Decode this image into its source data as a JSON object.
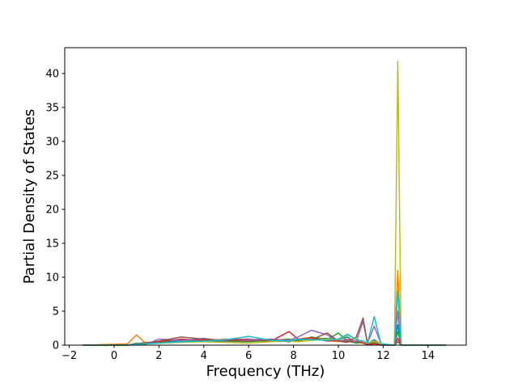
{
  "chart_data": {
    "type": "line",
    "xlabel": "Frequency (THz)",
    "ylabel": "Partial Density of States",
    "x": [
      -1.4,
      0.6,
      1.0,
      1.4,
      2,
      3,
      4,
      5,
      6,
      7,
      7.8,
      8.2,
      8.8,
      9.5,
      10,
      10.4,
      10.8,
      11.1,
      11.3,
      11.6,
      11.9,
      12.5,
      12.65,
      12.8,
      13.2,
      14,
      14.8
    ],
    "series": [
      {
        "color": "#1f77b4",
        "values": [
          0,
          0,
          0.2,
          0.4,
          0.5,
          0.6,
          0.7,
          0.5,
          0.6,
          0.8,
          0.5,
          0.7,
          0.9,
          1.0,
          0.8,
          1.2,
          0.4,
          0.5,
          0.2,
          0.8,
          0.1,
          0,
          3.0,
          0,
          0,
          0,
          0
        ]
      },
      {
        "color": "#ff7f0e",
        "values": [
          0,
          0.2,
          1.5,
          0.3,
          0.6,
          0.8,
          0.6,
          0.9,
          0.7,
          0.5,
          0.8,
          0.6,
          1.0,
          0.7,
          0.5,
          0.9,
          0.6,
          0.3,
          0.2,
          0.4,
          0.1,
          0,
          11.0,
          0,
          0,
          0,
          0
        ]
      },
      {
        "color": "#2ca02c",
        "values": [
          0,
          0,
          0.3,
          0.2,
          0.4,
          0.5,
          0.8,
          0.6,
          0.5,
          0.7,
          0.9,
          0.6,
          1.2,
          0.8,
          1.8,
          0.6,
          0.3,
          0.4,
          0.2,
          0.3,
          0.1,
          0,
          2.0,
          0,
          0,
          0,
          0
        ]
      },
      {
        "color": "#d62728",
        "values": [
          0,
          0,
          0.1,
          0.3,
          0.5,
          0.9,
          0.7,
          0.8,
          0.9,
          0.6,
          2.0,
          0.9,
          1.1,
          0.6,
          0.7,
          0.5,
          0.6,
          0.3,
          0.1,
          0.2,
          0,
          0,
          1.0,
          0,
          0,
          0,
          0
        ]
      },
      {
        "color": "#9467bd",
        "values": [
          0,
          0,
          0.2,
          0.1,
          0.9,
          0.7,
          1.0,
          0.6,
          0.8,
          0.9,
          0.7,
          1.2,
          2.2,
          1.5,
          0.6,
          0.8,
          0.5,
          3.5,
          0.3,
          2.8,
          0.2,
          0,
          5.0,
          0,
          0,
          0,
          0
        ]
      },
      {
        "color": "#8c564b",
        "values": [
          0,
          0,
          0.1,
          0.2,
          0.6,
          1.2,
          0.9,
          0.7,
          0.6,
          0.8,
          0.5,
          0.9,
          0.8,
          1.8,
          0.6,
          0.4,
          1.2,
          4.0,
          0.2,
          0.6,
          0.1,
          0,
          0.5,
          0,
          0,
          0,
          0
        ]
      },
      {
        "color": "#bcbd22",
        "values": [
          0,
          0,
          0.1,
          0.2,
          0.3,
          0.4,
          0.5,
          0.4,
          0.3,
          0.5,
          0.6,
          0.5,
          0.7,
          0.9,
          0.8,
          1.5,
          0.9,
          0.5,
          0.3,
          0.6,
          0.2,
          0,
          41.8,
          0,
          0,
          0,
          0
        ]
      },
      {
        "color": "#17becf",
        "values": [
          0,
          0,
          0.1,
          0.2,
          0.3,
          0.5,
          0.6,
          0.8,
          1.3,
          0.7,
          0.6,
          0.9,
          0.8,
          0.7,
          0.9,
          1.6,
          0.8,
          0.6,
          0.3,
          4.2,
          0.2,
          0,
          8.0,
          0,
          0,
          0,
          0
        ]
      }
    ],
    "xlim": [
      -2.2,
      15.7
    ],
    "ylim": [
      0,
      43.8
    ],
    "xticks": [
      {
        "value": -2,
        "label": "−2"
      },
      0,
      2,
      4,
      6,
      8,
      10,
      12,
      14
    ],
    "yticks": [
      0,
      5,
      10,
      15,
      20,
      25,
      30,
      35,
      40
    ]
  }
}
